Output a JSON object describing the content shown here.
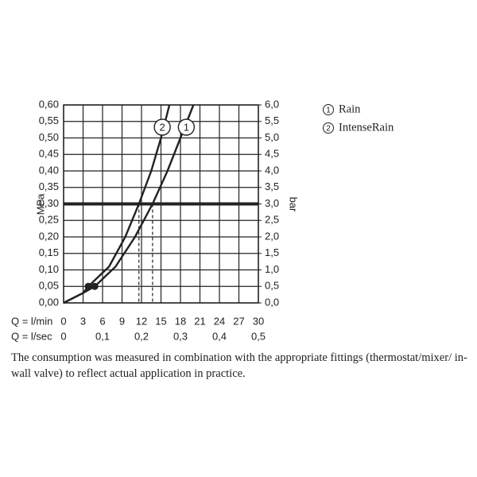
{
  "chart_data": {
    "type": "line",
    "y_label": "MPa",
    "y2_label": "bar",
    "x_label": "Q = l/min",
    "x2_label": "Q = l/sec",
    "xlim": [
      0,
      30
    ],
    "xticks": [
      0,
      3,
      6,
      9,
      12,
      15,
      18,
      21,
      24,
      27,
      30
    ],
    "x2lim": [
      0,
      0.5
    ],
    "x2ticks": [
      0,
      {
        "value": 0.1,
        "label": "0,1"
      },
      {
        "value": 0.2,
        "label": "0,2"
      },
      {
        "value": 0.3,
        "label": "0,3"
      },
      {
        "value": 0.4,
        "label": "0,4"
      },
      {
        "value": 0.5,
        "label": "0,5"
      }
    ],
    "ylim": [
      0,
      0.6
    ],
    "yticks": [
      {
        "value": 0,
        "label": "0,00"
      },
      {
        "value": 0.05,
        "label": "0,05"
      },
      {
        "value": 0.1,
        "label": "0,10"
      },
      {
        "value": 0.15,
        "label": "0,15"
      },
      {
        "value": 0.2,
        "label": "0,20"
      },
      {
        "value": 0.25,
        "label": "0,25"
      },
      {
        "value": 0.3,
        "label": "0,30"
      },
      {
        "value": 0.35,
        "label": "0,35"
      },
      {
        "value": 0.4,
        "label": "0,40"
      },
      {
        "value": 0.45,
        "label": "0,45"
      },
      {
        "value": 0.5,
        "label": "0,50"
      },
      {
        "value": 0.55,
        "label": "0,55"
      },
      {
        "value": 0.6,
        "label": "0,60"
      }
    ],
    "y2lim": [
      0,
      6
    ],
    "y2ticks": [
      {
        "value": 0,
        "label": "0,0"
      },
      {
        "value": 0.5,
        "label": "0,5"
      },
      {
        "value": 1,
        "label": "1,0"
      },
      {
        "value": 1.5,
        "label": "1,5"
      },
      {
        "value": 2,
        "label": "2,0"
      },
      {
        "value": 2.5,
        "label": "2,5"
      },
      {
        "value": 3,
        "label": "3,0"
      },
      {
        "value": 3.5,
        "label": "3,5"
      },
      {
        "value": 4,
        "label": "4,0"
      },
      {
        "value": 4.5,
        "label": "4,5"
      },
      {
        "value": 5,
        "label": "5,0"
      },
      {
        "value": 5.5,
        "label": "5,5"
      },
      {
        "value": 6,
        "label": "6,0"
      }
    ],
    "grid": true,
    "color": "#222",
    "reference_line": 0.3,
    "series": [
      {
        "name": "Rain",
        "label": "1",
        "x": [
          0,
          3,
          4.8,
          8,
          11,
          13.7,
          16,
          18,
          20
        ],
        "values": [
          0,
          0.03,
          0.05,
          0.11,
          0.2,
          0.3,
          0.4,
          0.5,
          0.6
        ]
      },
      {
        "name": "IntenseRain",
        "label": "2",
        "x": [
          0,
          3,
          3.8,
          7,
          9.5,
          11.6,
          13.5,
          15,
          16.3
        ],
        "values": [
          0,
          0.03,
          0.05,
          0.11,
          0.2,
          0.3,
          0.4,
          0.5,
          0.6
        ]
      }
    ],
    "note": "The consumption was measured in combination with the appropriate fittings (thermostat/mixer/ in-wall valve) to reflect actual application in practice."
  }
}
